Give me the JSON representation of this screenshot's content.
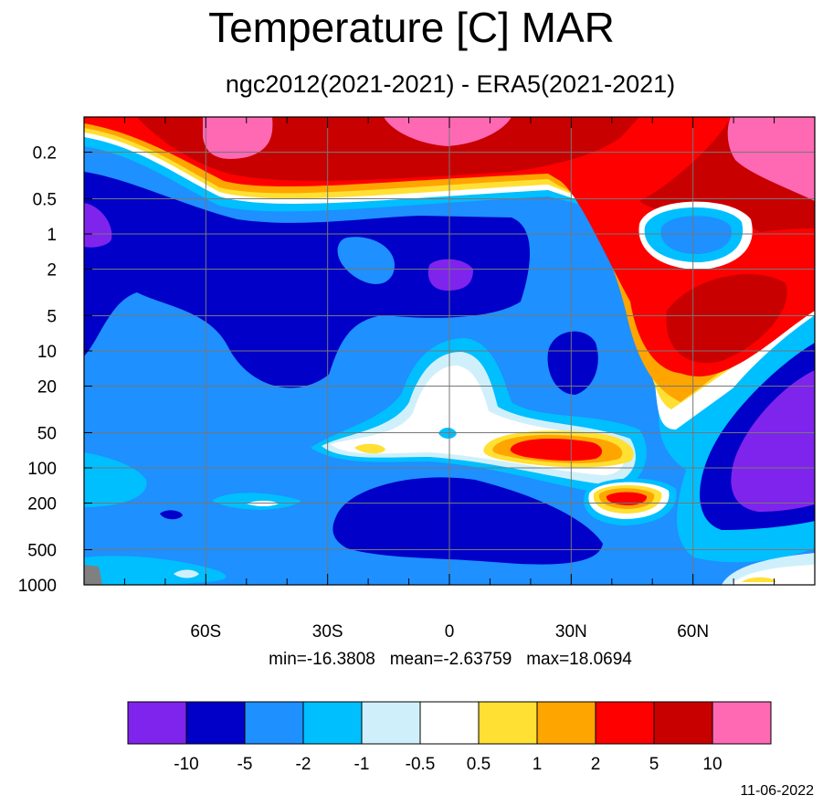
{
  "title": "Temperature [C] MAR",
  "subtitle": "ngc2012(2021-2021) - ERA5(2021-2021)",
  "stats": {
    "min": "min=-16.3808",
    "mean": "mean=-2.63759",
    "max": "max=18.0694"
  },
  "date": "11-06-2022",
  "chart_data": {
    "type": "heatmap",
    "subtype": "filled-contour latitude-pressure cross-section",
    "x": {
      "range": [
        -90,
        90
      ],
      "ticks": [
        -60,
        -30,
        0,
        30,
        60
      ],
      "tick_labels": [
        "60S",
        "30S",
        "0",
        "30N",
        "60N"
      ],
      "minor_step": 10
    },
    "y": {
      "scale": "log",
      "inverted": true,
      "range": [
        1000,
        0.1
      ],
      "ticks": [
        0.2,
        0.5,
        1,
        2,
        5,
        10,
        20,
        50,
        100,
        200,
        500,
        1000
      ],
      "tick_labels": [
        "0.2",
        "0.5",
        "1",
        "2",
        "5",
        "10",
        "20",
        "50",
        "100",
        "200",
        "500",
        "1000"
      ]
    },
    "grid": true,
    "legend": "bottom",
    "colorbar": {
      "levels": [
        -10,
        -5,
        -2,
        -1,
        -0.5,
        0.5,
        1,
        2,
        5,
        10
      ],
      "labels": [
        "-10",
        "-5",
        "-2",
        "-1",
        "-0.5",
        "0.5",
        "1",
        "2",
        "5",
        "10"
      ],
      "colors": [
        "#7f24ec",
        "#0000c8",
        "#1e90ff",
        "#00bfff",
        "#cff0fb",
        "#ffffff",
        "#ffe033",
        "#ffa500",
        "#ff0000",
        "#c80000",
        "#ff69b4"
      ]
    },
    "missing_color": "#808080",
    "approx_field": [
      {
        "lat": -85,
        "p": 0.2,
        "v": 8
      },
      {
        "lat": -60,
        "p": 0.3,
        "v": 9
      },
      {
        "lat": -50,
        "p": 0.15,
        "v": 12
      },
      {
        "lat": -30,
        "p": 0.3,
        "v": 6
      },
      {
        "lat": 0,
        "p": 0.15,
        "v": 11
      },
      {
        "lat": 0,
        "p": 0.4,
        "v": 6
      },
      {
        "lat": 30,
        "p": 0.3,
        "v": 5
      },
      {
        "lat": 45,
        "p": 0.5,
        "v": 6
      },
      {
        "lat": 80,
        "p": 0.2,
        "v": 12
      },
      {
        "lat": 80,
        "p": 0.6,
        "v": 7
      },
      {
        "lat": -85,
        "p": 1,
        "v": -8
      },
      {
        "lat": -60,
        "p": 2,
        "v": -7
      },
      {
        "lat": -30,
        "p": 1.3,
        "v": -4
      },
      {
        "lat": 0,
        "p": 2,
        "v": -10.5
      },
      {
        "lat": -10,
        "p": 1.5,
        "v": -6
      },
      {
        "lat": 55,
        "p": 1,
        "v": -3
      },
      {
        "lat": 60,
        "p": 3,
        "v": 7
      },
      {
        "lat": 65,
        "p": 6,
        "v": 6
      },
      {
        "lat": 35,
        "p": 12,
        "v": -6
      },
      {
        "lat": 0,
        "p": 20,
        "v": -0.7
      },
      {
        "lat": -15,
        "p": 70,
        "v": 1
      },
      {
        "lat": 30,
        "p": 70,
        "v": 6
      },
      {
        "lat": 45,
        "p": 180,
        "v": 6
      },
      {
        "lat": 0,
        "p": 350,
        "v": -6
      },
      {
        "lat": 85,
        "p": 90,
        "v": -11
      },
      {
        "lat": -85,
        "p": 150,
        "v": -1.5
      },
      {
        "lat": -50,
        "p": 200,
        "v": -0.7
      },
      {
        "lat": 80,
        "p": 900,
        "v": 0.8
      }
    ]
  }
}
